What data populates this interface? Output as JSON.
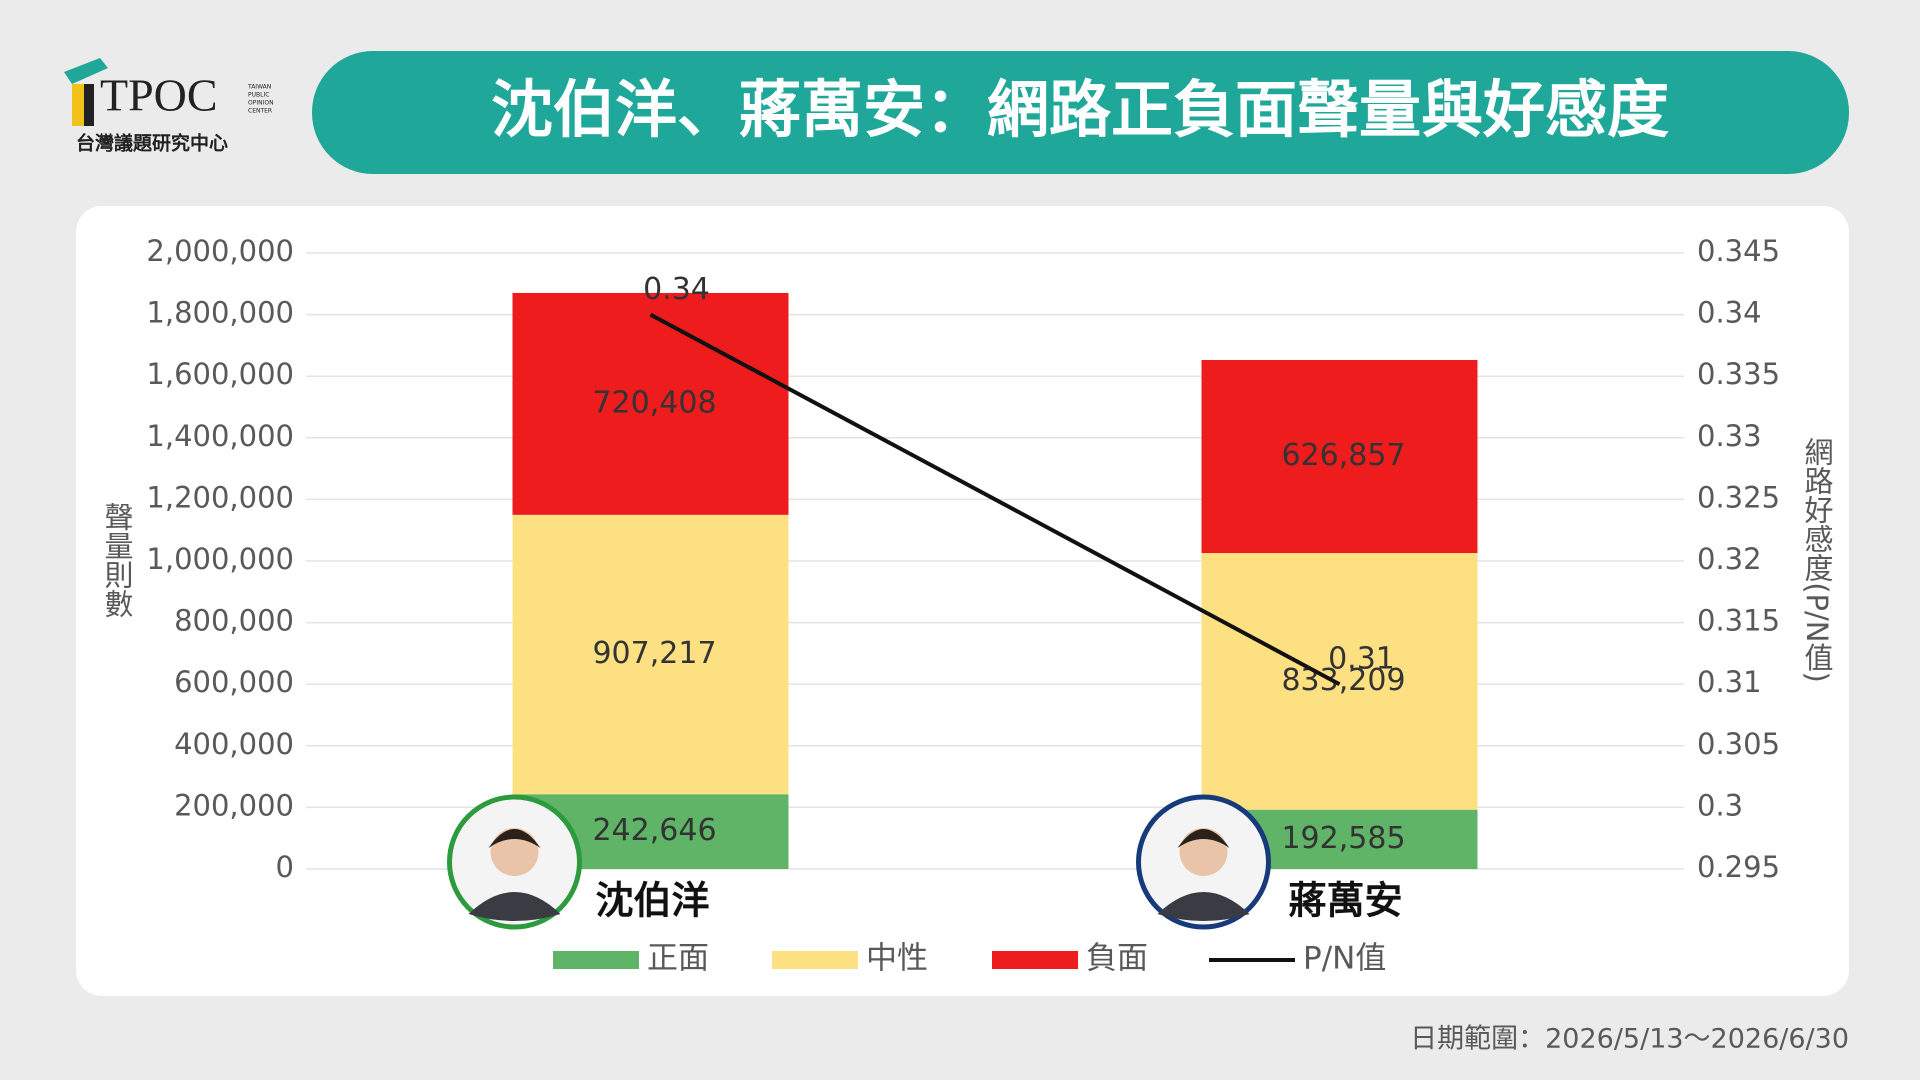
{
  "logo": {
    "name": "TPOC",
    "tagline": "台灣議題研究中心",
    "english": [
      "TAIWAN",
      "PUBLIC",
      "OPINION",
      "CENTER"
    ]
  },
  "chart_data": {
    "type": "bar",
    "stacked": true,
    "title": "沈伯洋、蔣萬安：網路正負面聲量與好感度",
    "ylabel": "聲量則數",
    "y2label": "網路好感度(P/N值)",
    "note": "日期範圍：2026/5/13～2026/6/30",
    "categories": [
      "沈伯洋",
      "蔣萬安"
    ],
    "series": [
      {
        "name": "正面",
        "color": "#5fb467",
        "values": [
          242646,
          192585
        ],
        "value_labels": [
          "242,646",
          "192,585"
        ]
      },
      {
        "name": "中性",
        "color": "#fde081",
        "values": [
          907217,
          833209
        ],
        "value_labels": [
          "907,217",
          "833,209"
        ]
      },
      {
        "name": "負面",
        "color": "#ee1c1c",
        "values": [
          720408,
          626857
        ],
        "value_labels": [
          "720,408",
          "626,857"
        ]
      },
      {
        "name": "P/N值",
        "color": "#111111",
        "type": "line",
        "axis": "y2",
        "values": [
          0.34,
          0.31
        ]
      }
    ],
    "ylim": [
      0,
      2000000
    ],
    "yticks": [
      0,
      {
        "value": 200000,
        "label": "200,000"
      },
      {
        "value": 400000,
        "label": "400,000"
      },
      {
        "value": 600000,
        "label": "600,000"
      },
      {
        "value": 800000,
        "label": "800,000"
      },
      {
        "value": 1000000,
        "label": "1,000,000"
      },
      {
        "value": 1200000,
        "label": "1,200,000"
      },
      {
        "value": 1400000,
        "label": "1,400,000"
      },
      {
        "value": 1600000,
        "label": "1,600,000"
      },
      {
        "value": 1800000,
        "label": "1,800,000"
      },
      {
        "value": 2000000,
        "label": "2,000,000"
      }
    ],
    "y2lim": [
      0.295,
      0.345
    ],
    "y2ticks": [
      0.295,
      0.3,
      0.305,
      0.31,
      0.315,
      0.32,
      0.325,
      0.33,
      0.335,
      0.34,
      0.345
    ],
    "grid": true,
    "legend": "bottom"
  }
}
